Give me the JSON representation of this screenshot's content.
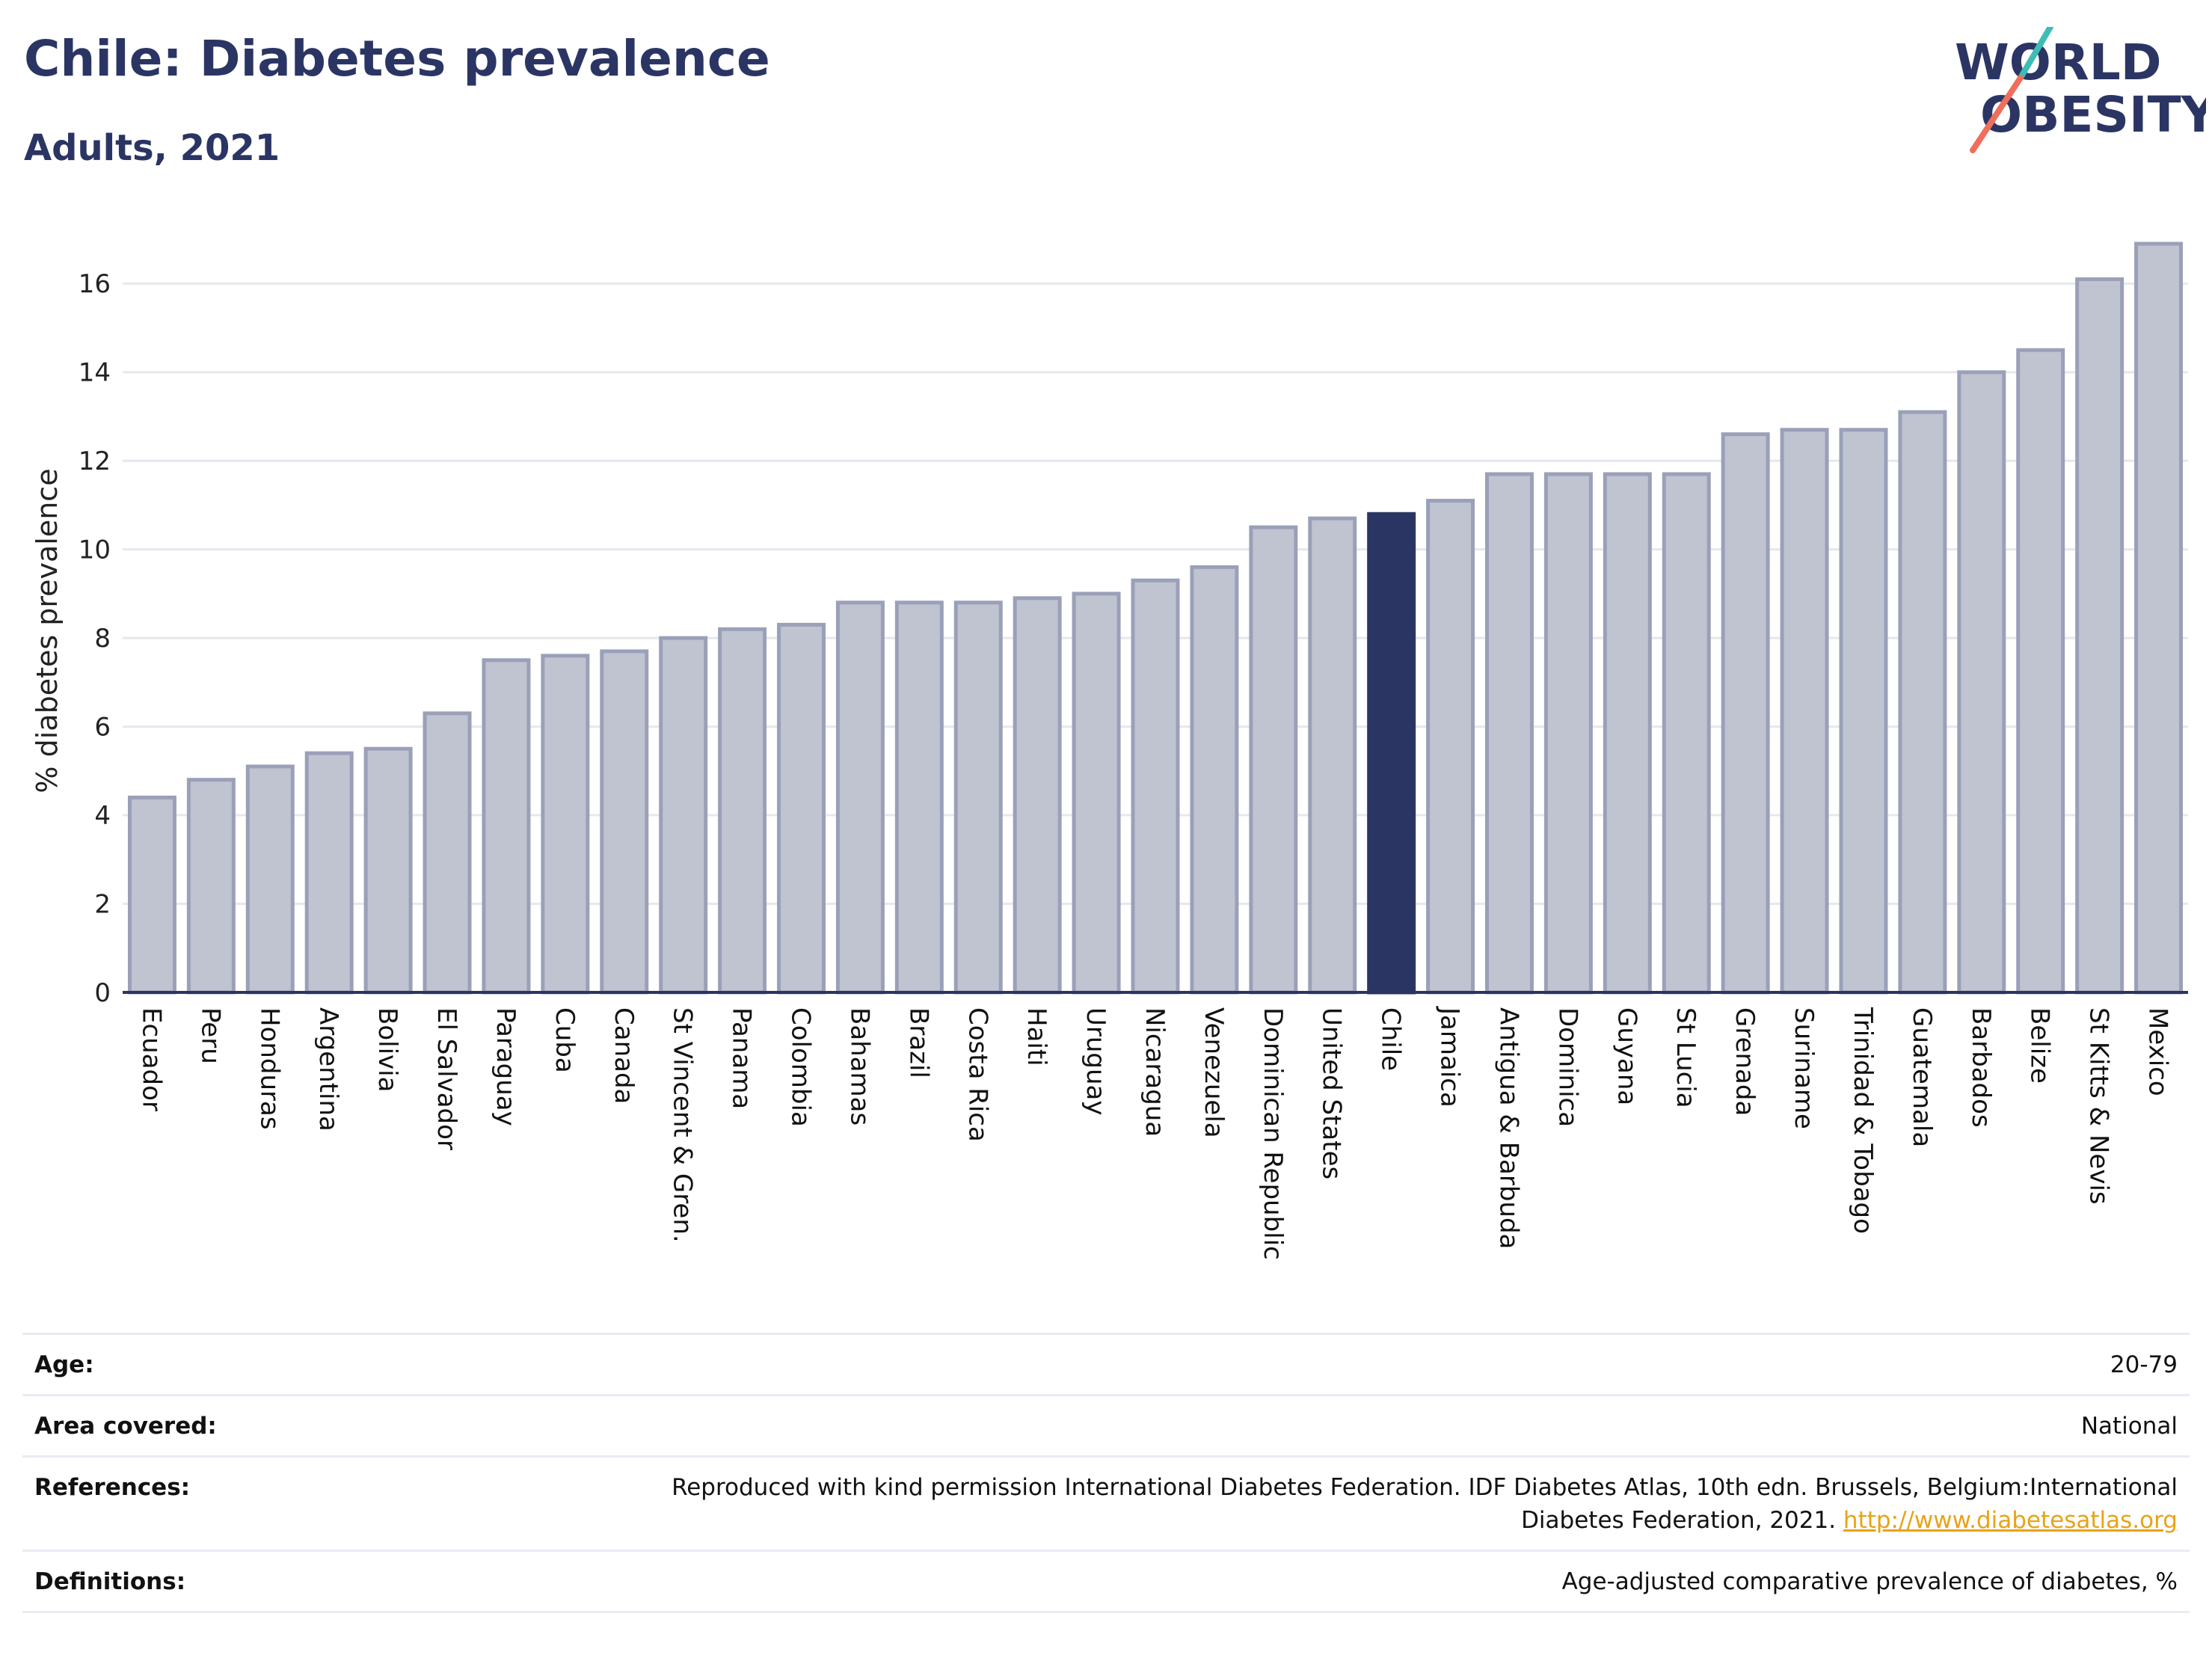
{
  "header": {
    "title": "Chile: Diabetes prevalence",
    "subtitle": "Adults, 2021"
  },
  "logo": {
    "line1": "WORLD",
    "line2": "OBESITY",
    "accent_teal": "#3dbdb6",
    "accent_coral": "#ef6f5c",
    "text_color": "#2b3564"
  },
  "chart_data": {
    "type": "bar",
    "ylabel": "% diabetes prevalence",
    "xlabel": "",
    "ylim": [
      0,
      17
    ],
    "yticks": [
      0,
      2,
      4,
      6,
      8,
      10,
      12,
      14,
      16
    ],
    "grid": true,
    "highlight": "Chile",
    "colors": {
      "bar_fill": "#c0c3d0",
      "bar_stroke": "#9aa0b8",
      "highlight_fill": "#2b3564"
    },
    "categories": [
      "Ecuador",
      "Peru",
      "Honduras",
      "Argentina",
      "Bolivia",
      "El Salvador",
      "Paraguay",
      "Cuba",
      "Canada",
      "St Vincent & Gren.",
      "Panama",
      "Colombia",
      "Bahamas",
      "Brazil",
      "Costa Rica",
      "Haiti",
      "Uruguay",
      "Nicaragua",
      "Venezuela",
      "Dominican Republic",
      "United States",
      "Chile",
      "Jamaica",
      "Antigua & Barbuda",
      "Dominica",
      "Guyana",
      "St Lucia",
      "Grenada",
      "Suriname",
      "Trinidad & Tobago",
      "Guatemala",
      "Barbados",
      "Belize",
      "St Kitts & Nevis",
      "Mexico"
    ],
    "values": [
      4.4,
      4.8,
      5.1,
      5.4,
      5.5,
      6.3,
      7.5,
      7.6,
      7.7,
      8.0,
      8.2,
      8.3,
      8.8,
      8.8,
      8.8,
      8.9,
      9.0,
      9.3,
      9.6,
      10.5,
      10.7,
      10.8,
      11.1,
      11.7,
      11.7,
      11.7,
      11.7,
      12.6,
      12.7,
      12.7,
      13.1,
      14.0,
      14.5,
      16.1,
      16.9
    ]
  },
  "details": [
    {
      "key": "Age:",
      "value": "20-79"
    },
    {
      "key": "Area covered:",
      "value": "National"
    },
    {
      "key": "References:",
      "value": "Reproduced with kind permission International Diabetes Federation.  IDF Diabetes Atlas, 10th edn. Brussels, Belgium:International Diabetes Federation, 2021.",
      "link": "http://www.diabetesatlas.org"
    },
    {
      "key": "Definitions:",
      "value": "Age-adjusted comparative prevalence of diabetes, %"
    }
  ]
}
